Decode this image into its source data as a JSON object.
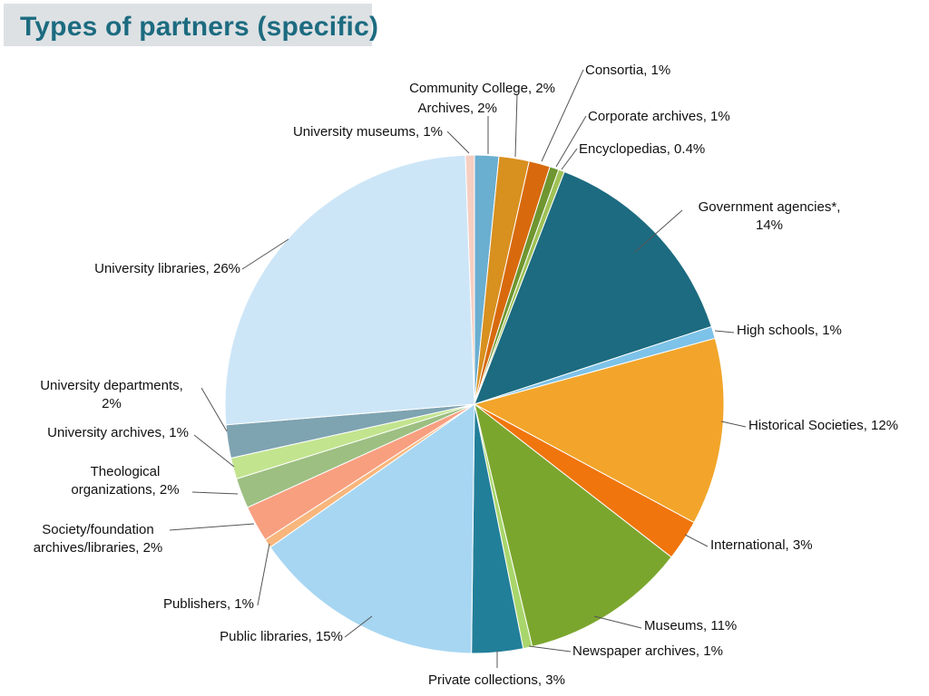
{
  "chart_data": {
    "type": "pie",
    "title": "Types of partners (specific)",
    "slices": [
      {
        "label": "University museums, 1%",
        "value": 0.6,
        "color": "#f6cfc2"
      },
      {
        "label": "Archives, 2%",
        "value": 1.6,
        "color": "#6aaed0"
      },
      {
        "label": "Community College, 2%",
        "value": 2.0,
        "color": "#d8901f"
      },
      {
        "label": "Consortia, 1%",
        "value": 1.4,
        "color": "#d86a0d"
      },
      {
        "label": "Corporate archives, 1%",
        "value": 0.6,
        "color": "#6f9630"
      },
      {
        "label": "Encyclopedias, 0.4%",
        "value": 0.4,
        "color": "#9fc256"
      },
      {
        "label": "Government agencies*, 14%",
        "value": 14.4,
        "color": "#1c6b80"
      },
      {
        "label": "High schools, 1%",
        "value": 0.8,
        "color": "#7dc2e8"
      },
      {
        "label": "Historical Societies, 12%",
        "value": 12.4,
        "color": "#f2a52a"
      },
      {
        "label": "International, 3%",
        "value": 2.7,
        "color": "#f0750d"
      },
      {
        "label": "Museums, 11%",
        "value": 11.0,
        "color": "#7ba62e"
      },
      {
        "label": "Newspaper archives, 1%",
        "value": 0.6,
        "color": "#a9d66c"
      },
      {
        "label": "Private collections, 3%",
        "value": 3.4,
        "color": "#227f99"
      },
      {
        "label": "Public libraries, 15%",
        "value": 15.4,
        "color": "#a7d6f2"
      },
      {
        "label": "Publishers, 1%",
        "value": 0.6,
        "color": "#f8b67c"
      },
      {
        "label": "Society/foundation archives/libraries, 2%",
        "value": 2.4,
        "color": "#f89f80"
      },
      {
        "label": "Theological organizations, 2%",
        "value": 2.0,
        "color": "#9dbf82"
      },
      {
        "label": "University archives, 1%",
        "value": 1.4,
        "color": "#c2e48e"
      },
      {
        "label": "University departments, 2%",
        "value": 2.2,
        "color": "#7ea3b1"
      },
      {
        "label": "University libraries, 26%",
        "value": 26.3,
        "color": "#cde6f7"
      }
    ]
  }
}
